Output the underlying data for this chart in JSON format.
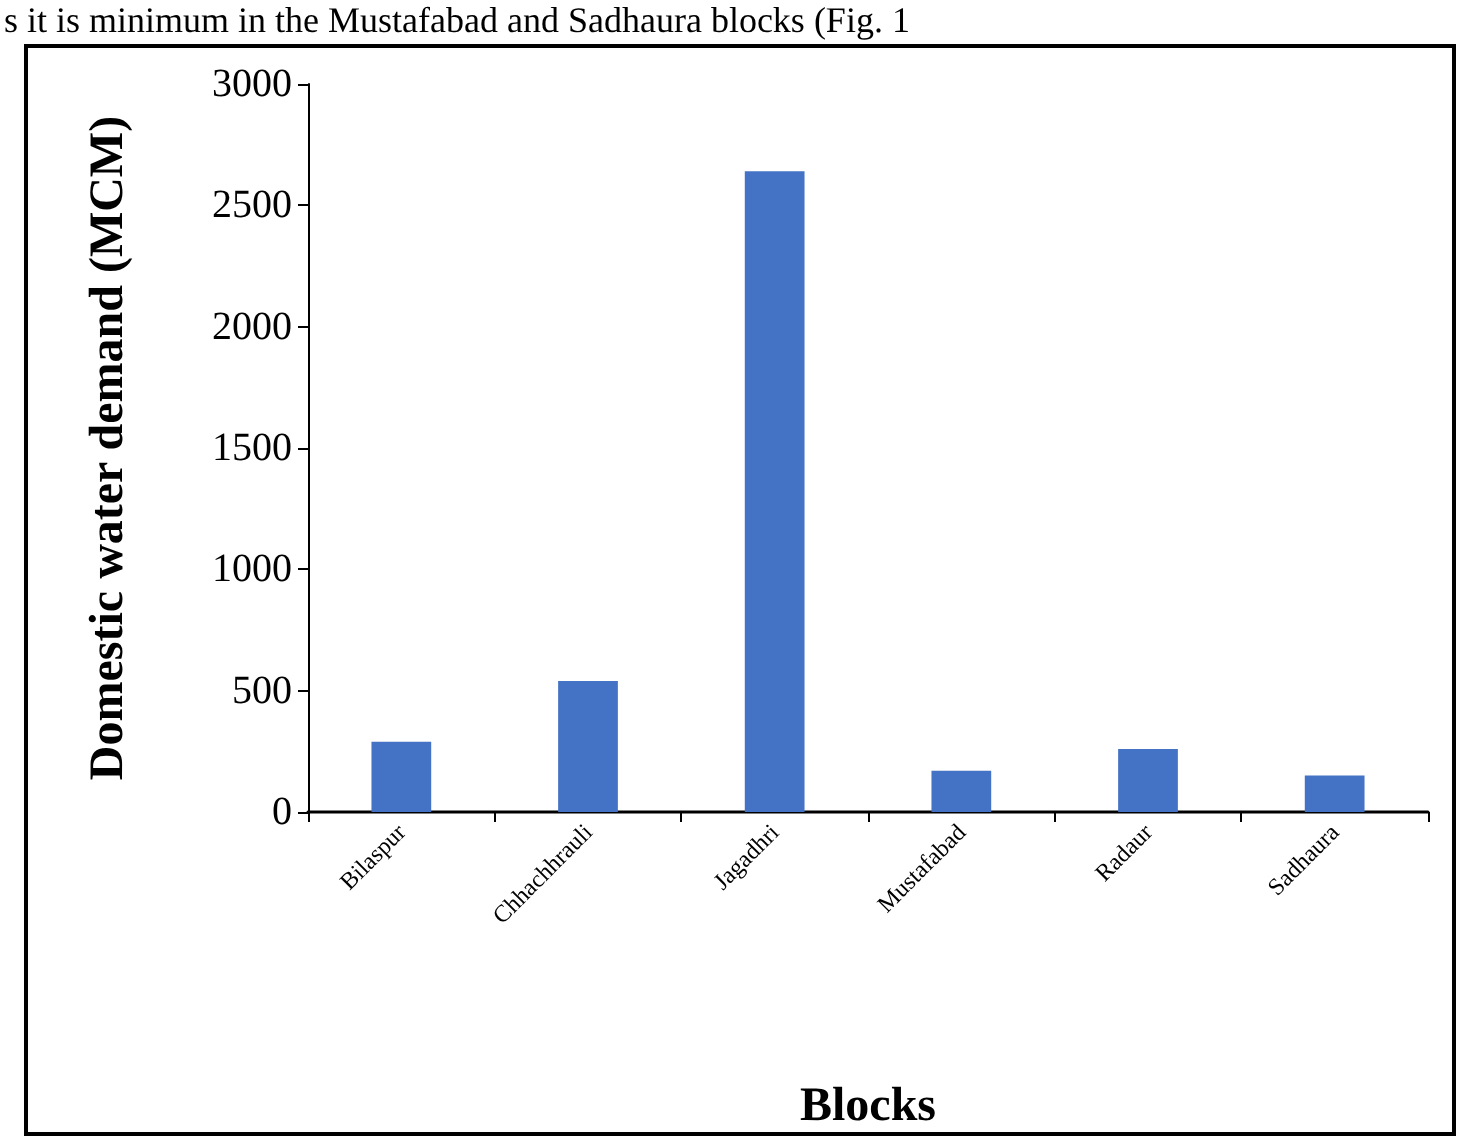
{
  "chart_data": {
    "type": "bar",
    "annotations": [
      "s it is minimum in the Mustafabad and Sadhaura blocks (Fig. 1"
    ],
    "xlabel": "Blocks",
    "ylabel": "Domestic water demand (MCM)",
    "categories": [
      "Bilaspur",
      "Chhachhrauli",
      "Jagadhri",
      "Mustafabad",
      "Radaur",
      "Sadhaura"
    ],
    "values": [
      290,
      540,
      2640,
      170,
      260,
      150
    ],
    "color": "#4472c4",
    "ylim": [
      0,
      3000
    ],
    "yticks": [
      0,
      500,
      1000,
      1500,
      2000,
      2500,
      3000
    ]
  }
}
